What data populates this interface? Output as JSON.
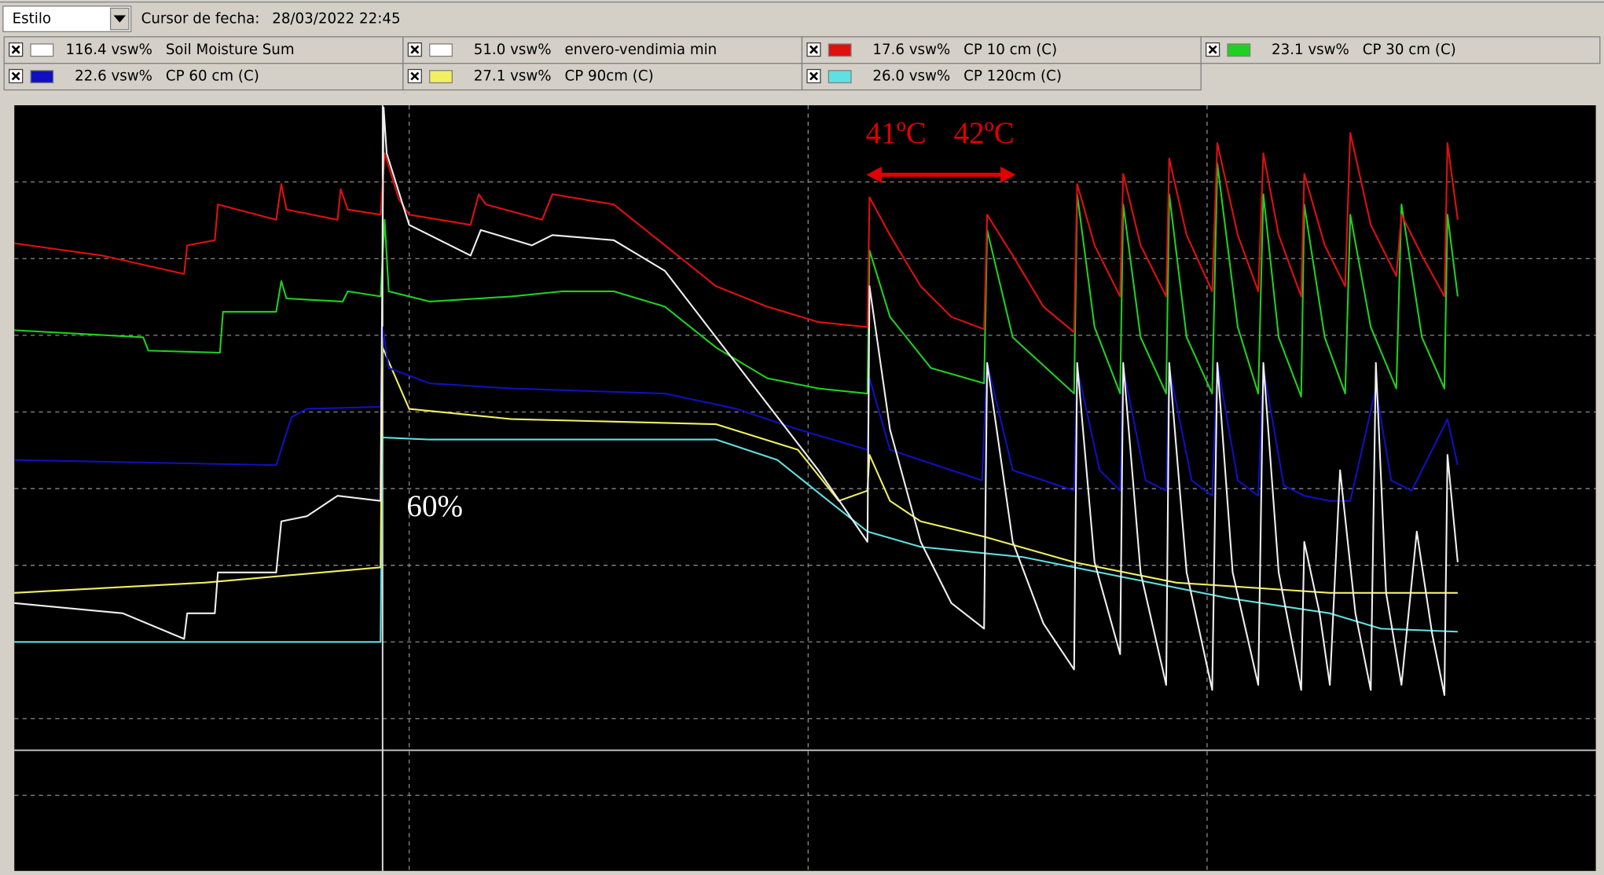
{
  "toolbar": {
    "style_dropdown": "Estilo",
    "cursor_label": "Cursor de fecha:",
    "cursor_date": "28/03/2022 22:45"
  },
  "legend": [
    {
      "value": "116.4 vsw%",
      "name": "Soil Moisture Sum",
      "color": "#ffffff"
    },
    {
      "value": "51.0 vsw%",
      "name": "envero-vendimia min",
      "color": "#ffffff"
    },
    {
      "value": "17.6 vsw%",
      "name": "CP 10 cm (C)",
      "color": "#e01010"
    },
    {
      "value": "23.1 vsw%",
      "name": "CP 30 cm (C)",
      "color": "#20d020"
    },
    {
      "value": "22.6 vsw%",
      "name": "CP 60 cm (C)",
      "color": "#1010c0"
    },
    {
      "value": "27.1 vsw%",
      "name": "CP 90cm (C)",
      "color": "#f0f060"
    },
    {
      "value": "26.0 vsw%",
      "name": "CP 120cm (C)",
      "color": "#60e0e0"
    }
  ],
  "annotations": {
    "temp_left": "41ºC",
    "temp_right": "42ºC",
    "percent": "60%"
  }
}
